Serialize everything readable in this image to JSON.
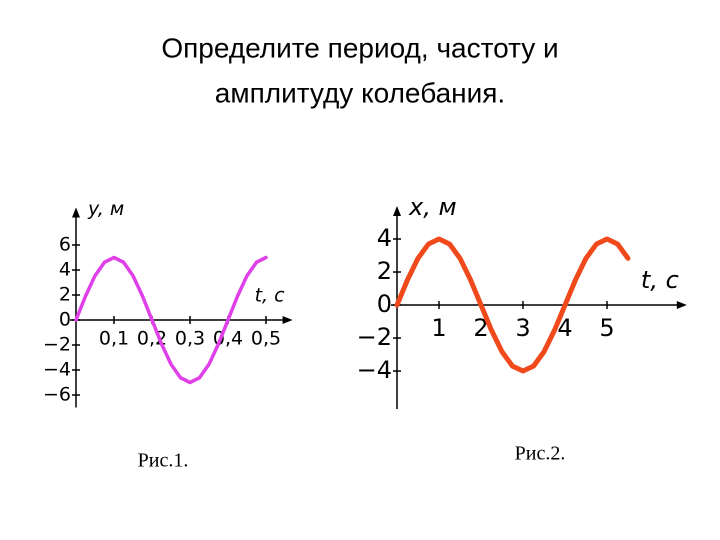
{
  "title": [
    "Определите период, частоту и",
    "амплитуду колебания."
  ],
  "captions": [
    "Рис.1.",
    "Рис.2."
  ],
  "chart_data": [
    {
      "type": "line",
      "y_label": "y, м",
      "x_label": "t, с",
      "color": "#e040e8",
      "x": [
        0,
        0.025,
        0.05,
        0.075,
        0.1,
        0.125,
        0.15,
        0.175,
        0.2,
        0.225,
        0.25,
        0.275,
        0.3,
        0.325,
        0.35,
        0.375,
        0.4,
        0.425,
        0.45,
        0.475,
        0.5
      ],
      "values": [
        0,
        1.91,
        3.54,
        4.62,
        5,
        4.62,
        3.54,
        1.91,
        0,
        -1.91,
        -3.54,
        -4.62,
        -5,
        -4.62,
        -3.54,
        -1.91,
        0,
        1.91,
        3.54,
        4.62,
        5
      ],
      "xlim": [
        0,
        0.57
      ],
      "ylim": [
        -7,
        9
      ],
      "xticks": [
        {
          "value": 0.1,
          "label": "0,1"
        },
        {
          "value": 0.2,
          "label": "0,2"
        },
        {
          "value": 0.3,
          "label": "0,3"
        },
        {
          "value": 0.4,
          "label": "0,4"
        },
        {
          "value": 0.5,
          "label": "0,5"
        }
      ],
      "yticks": [
        6,
        4,
        2,
        0,
        {
          "value": -2,
          "label": "−2"
        },
        {
          "value": -4,
          "label": "−4"
        },
        {
          "value": -6,
          "label": "−6"
        }
      ]
    },
    {
      "type": "line",
      "y_label": "x, м",
      "x_label": "t, с",
      "color": "#f04a1c",
      "x": [
        0,
        0.25,
        0.5,
        0.75,
        1,
        1.25,
        1.5,
        1.75,
        2,
        2.25,
        2.5,
        2.75,
        3,
        3.25,
        3.5,
        3.75,
        4,
        4.25,
        4.5,
        4.75,
        5,
        5.25,
        5.5
      ],
      "values": [
        0,
        1.53,
        2.83,
        3.7,
        4,
        3.7,
        2.83,
        1.53,
        0,
        -1.53,
        -2.83,
        -3.7,
        -4,
        -3.7,
        -2.83,
        -1.53,
        0,
        1.53,
        2.83,
        3.7,
        4,
        3.7,
        2.83
      ],
      "xlim": [
        0,
        6.9
      ],
      "ylim": [
        -6.3,
        6
      ],
      "xticks": [
        1,
        2,
        3,
        4,
        5
      ],
      "yticks": [
        4,
        2,
        0,
        {
          "value": -2,
          "label": "−2"
        },
        {
          "value": -4,
          "label": "−4"
        }
      ]
    }
  ]
}
